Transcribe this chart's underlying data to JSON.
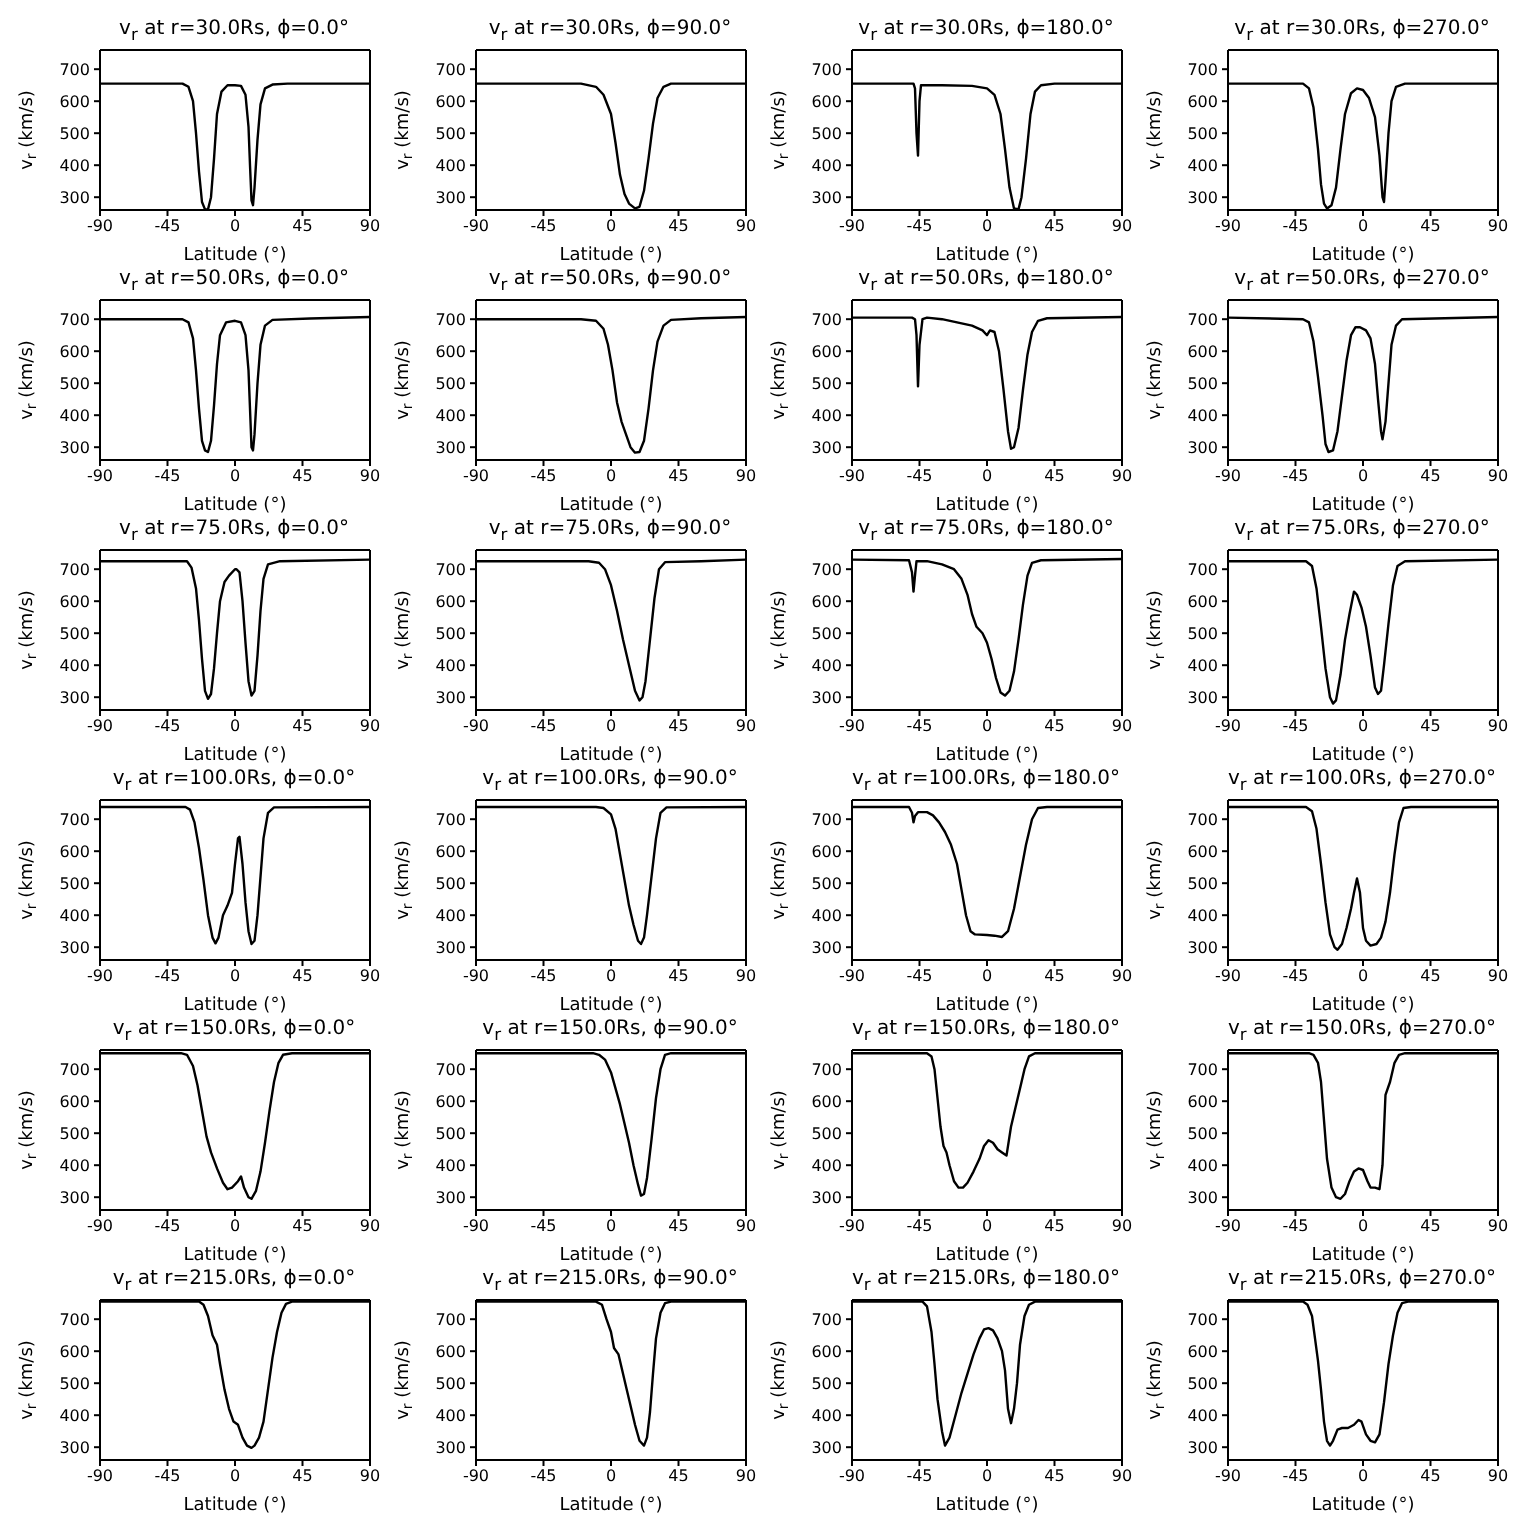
{
  "chart_data": [
    {
      "type": "line",
      "title": "v$_{r}$ at r=30.0Rs, ϕ=0.0°",
      "xlabel": "Latitude (°)",
      "ylabel": "v$_{r}$ (km/s)",
      "color": "#000000",
      "xlim": [
        -90,
        90
      ],
      "xticks": [
        -90,
        -45,
        0,
        45,
        90
      ],
      "ylim": [
        260,
        760
      ],
      "yticks": [
        300,
        400,
        500,
        600,
        700
      ],
      "x": [
        -90,
        -35,
        -31,
        -28,
        -26,
        -24,
        -22,
        -20,
        -18,
        -16,
        -14,
        -12,
        -9,
        -5,
        0,
        4,
        7,
        9,
        10,
        11,
        12,
        13,
        15,
        17,
        20,
        25,
        35,
        90
      ],
      "values": [
        655,
        655,
        645,
        600,
        500,
        380,
        285,
        262,
        262,
        300,
        420,
        560,
        630,
        650,
        650,
        648,
        620,
        520,
        400,
        290,
        275,
        330,
        480,
        590,
        640,
        652,
        655,
        655
      ]
    },
    {
      "type": "line",
      "title": "v$_{r}$ at r=30.0Rs, ϕ=90.0°",
      "xlabel": "Latitude (°)",
      "ylabel": "v$_{r}$ (km/s)",
      "color": "#000000",
      "xlim": [
        -90,
        90
      ],
      "xticks": [
        -90,
        -45,
        0,
        45,
        90
      ],
      "ylim": [
        260,
        760
      ],
      "yticks": [
        300,
        400,
        500,
        600,
        700
      ],
      "x": [
        -90,
        -20,
        -10,
        -5,
        0,
        3,
        6,
        9,
        12,
        16,
        19,
        22,
        25,
        28,
        31,
        35,
        40,
        90
      ],
      "values": [
        655,
        655,
        645,
        620,
        560,
        470,
        370,
        310,
        280,
        265,
        270,
        320,
        420,
        530,
        610,
        645,
        655,
        655
      ]
    },
    {
      "type": "line",
      "title": "v$_{r}$ at r=30.0Rs, ϕ=180.0°",
      "xlabel": "Latitude (°)",
      "ylabel": "v$_{r}$ (km/s)",
      "color": "#000000",
      "xlim": [
        -90,
        90
      ],
      "xticks": [
        -90,
        -45,
        0,
        45,
        90
      ],
      "ylim": [
        260,
        760
      ],
      "yticks": [
        300,
        400,
        500,
        600,
        700
      ],
      "x": [
        -90,
        -49,
        -48,
        -47,
        -46,
        -45,
        -44,
        -30,
        -10,
        0,
        5,
        9,
        12,
        15,
        18,
        21,
        23,
        26,
        29,
        32,
        36,
        45,
        90
      ],
      "values": [
        655,
        655,
        640,
        500,
        430,
        600,
        650,
        650,
        648,
        640,
        620,
        560,
        450,
        330,
        265,
        262,
        300,
        420,
        560,
        630,
        650,
        655,
        655
      ]
    },
    {
      "type": "line",
      "title": "v$_{r}$ at r=30.0Rs, ϕ=270.0°",
      "xlabel": "Latitude (°)",
      "ylabel": "v$_{r}$ (km/s)",
      "color": "#000000",
      "xlim": [
        -90,
        90
      ],
      "xticks": [
        -90,
        -45,
        0,
        45,
        90
      ],
      "ylim": [
        260,
        760
      ],
      "yticks": [
        300,
        400,
        500,
        600,
        700
      ],
      "x": [
        -90,
        -40,
        -36,
        -33,
        -30,
        -28,
        -26,
        -24,
        -21,
        -18,
        -15,
        -12,
        -8,
        -4,
        0,
        4,
        8,
        11,
        13,
        14,
        15,
        17,
        19,
        22,
        28,
        90
      ],
      "values": [
        655,
        655,
        640,
        580,
        450,
        340,
        280,
        265,
        275,
        330,
        450,
        560,
        625,
        640,
        635,
        610,
        550,
        430,
        300,
        285,
        350,
        500,
        600,
        645,
        655,
        655
      ]
    },
    {
      "type": "line",
      "title": "v$_{r}$ at r=50.0Rs, ϕ=0.0°",
      "xlabel": "Latitude (°)",
      "ylabel": "v$_{r}$ (km/s)",
      "color": "#000000",
      "xlim": [
        -90,
        90
      ],
      "xticks": [
        -90,
        -45,
        0,
        45,
        90
      ],
      "ylim": [
        260,
        760
      ],
      "yticks": [
        300,
        400,
        500,
        600,
        700
      ],
      "x": [
        -90,
        -35,
        -31,
        -28,
        -26,
        -24,
        -22,
        -20,
        -18,
        -16,
        -14,
        -12,
        -10,
        -6,
        0,
        4,
        7,
        9,
        10,
        11,
        12,
        13,
        15,
        17,
        20,
        25,
        50,
        90
      ],
      "values": [
        700,
        700,
        690,
        640,
        540,
        420,
        320,
        290,
        285,
        320,
        430,
        560,
        650,
        690,
        695,
        690,
        650,
        540,
        420,
        300,
        290,
        340,
        500,
        620,
        680,
        698,
        702,
        707
      ]
    },
    {
      "type": "line",
      "title": "v$_{r}$ at r=50.0Rs, ϕ=90.0°",
      "xlabel": "Latitude (°)",
      "ylabel": "v$_{r}$ (km/s)",
      "color": "#000000",
      "xlim": [
        -90,
        90
      ],
      "xticks": [
        -90,
        -45,
        0,
        45,
        90
      ],
      "ylim": [
        260,
        760
      ],
      "yticks": [
        300,
        400,
        500,
        600,
        700
      ],
      "x": [
        -90,
        -20,
        -10,
        -5,
        -2,
        1,
        4,
        7,
        10,
        13,
        16,
        19,
        22,
        25,
        28,
        31,
        35,
        40,
        60,
        90
      ],
      "values": [
        700,
        700,
        695,
        670,
        620,
        540,
        440,
        380,
        340,
        300,
        283,
        285,
        320,
        420,
        540,
        630,
        680,
        698,
        703,
        707
      ]
    },
    {
      "type": "line",
      "title": "v$_{r}$ at r=50.0Rs, ϕ=180.0°",
      "xlabel": "Latitude (°)",
      "ylabel": "v$_{r}$ (km/s)",
      "color": "#000000",
      "xlim": [
        -90,
        90
      ],
      "xticks": [
        -90,
        -45,
        0,
        45,
        90
      ],
      "ylim": [
        260,
        760
      ],
      "yticks": [
        300,
        400,
        500,
        600,
        700
      ],
      "x": [
        -90,
        -50,
        -48,
        -47,
        -46,
        -45,
        -43,
        -40,
        -30,
        -20,
        -10,
        -3,
        0,
        2,
        5,
        8,
        11,
        14,
        16,
        18,
        21,
        24,
        27,
        30,
        34,
        40,
        90
      ],
      "values": [
        705,
        705,
        700,
        650,
        490,
        620,
        700,
        705,
        700,
        690,
        680,
        665,
        650,
        665,
        660,
        600,
        480,
        350,
        295,
        300,
        360,
        480,
        590,
        660,
        695,
        703,
        707
      ]
    },
    {
      "type": "line",
      "title": "v$_{r}$ at r=50.0Rs, ϕ=270.0°",
      "xlabel": "Latitude (°)",
      "ylabel": "v$_{r}$ (km/s)",
      "color": "#000000",
      "xlim": [
        -90,
        90
      ],
      "xticks": [
        -90,
        -45,
        0,
        45,
        90
      ],
      "ylim": [
        260,
        760
      ],
      "yticks": [
        300,
        400,
        500,
        600,
        700
      ],
      "x": [
        -90,
        -40,
        -36,
        -33,
        -30,
        -27,
        -25,
        -23,
        -20,
        -17,
        -14,
        -11,
        -8,
        -5,
        -2,
        2,
        5,
        8,
        10,
        12,
        13,
        15,
        17,
        19,
        22,
        26,
        90
      ],
      "values": [
        705,
        700,
        690,
        630,
        520,
        400,
        310,
        285,
        290,
        350,
        460,
        570,
        650,
        675,
        675,
        665,
        640,
        560,
        450,
        350,
        325,
        380,
        500,
        620,
        680,
        700,
        707
      ]
    },
    {
      "type": "line",
      "title": "v$_{r}$ at r=75.0Rs, ϕ=0.0°",
      "xlabel": "Latitude (°)",
      "ylabel": "v$_{r}$ (km/s)",
      "color": "#000000",
      "xlim": [
        -90,
        90
      ],
      "xticks": [
        -90,
        -45,
        0,
        45,
        90
      ],
      "ylim": [
        260,
        760
      ],
      "yticks": [
        300,
        400,
        500,
        600,
        700
      ],
      "x": [
        -90,
        -32,
        -29,
        -26,
        -24,
        -22,
        -20,
        -18,
        -16,
        -14,
        -12,
        -10,
        -7,
        -4,
        0,
        1,
        3,
        5,
        7,
        9,
        11,
        13,
        15,
        17,
        19,
        22,
        30,
        90
      ],
      "values": [
        725,
        725,
        705,
        640,
        540,
        420,
        320,
        295,
        310,
        390,
        500,
        600,
        660,
        680,
        700,
        700,
        690,
        600,
        470,
        350,
        305,
        320,
        430,
        570,
        670,
        715,
        725,
        730
      ]
    },
    {
      "type": "line",
      "title": "v$_{r}$ at r=75.0Rs, ϕ=90.0°",
      "xlabel": "Latitude (°)",
      "ylabel": "v$_{r}$ (km/s)",
      "color": "#000000",
      "xlim": [
        -90,
        90
      ],
      "xticks": [
        -90,
        -45,
        0,
        45,
        90
      ],
      "ylim": [
        260,
        760
      ],
      "yticks": [
        300,
        400,
        500,
        600,
        700
      ],
      "x": [
        -90,
        -15,
        -8,
        -4,
        0,
        4,
        8,
        12,
        16,
        19,
        21,
        23,
        26,
        29,
        32,
        36,
        60,
        90
      ],
      "values": [
        725,
        725,
        720,
        700,
        650,
        570,
        480,
        400,
        320,
        290,
        300,
        350,
        480,
        610,
        700,
        722,
        725,
        730
      ]
    },
    {
      "type": "line",
      "title": "v$_{r}$ at r=75.0Rs, ϕ=180.0°",
      "xlabel": "Latitude (°)",
      "ylabel": "v$_{r}$ (km/s)",
      "color": "#000000",
      "xlim": [
        -90,
        90
      ],
      "xticks": [
        -90,
        -45,
        0,
        45,
        90
      ],
      "ylim": [
        260,
        760
      ],
      "yticks": [
        300,
        400,
        500,
        600,
        700
      ],
      "x": [
        -90,
        -52,
        -50,
        -49,
        -48,
        -47,
        -40,
        -30,
        -22,
        -17,
        -13,
        -10,
        -7,
        -3,
        0,
        3,
        6,
        9,
        12,
        15,
        18,
        21,
        24,
        27,
        30,
        36,
        90
      ],
      "values": [
        730,
        728,
        690,
        630,
        680,
        725,
        725,
        715,
        700,
        670,
        620,
        560,
        520,
        500,
        470,
        420,
        360,
        315,
        305,
        320,
        380,
        480,
        590,
        680,
        720,
        728,
        732
      ]
    },
    {
      "type": "line",
      "title": "v$_{r}$ at r=75.0Rs, ϕ=270.0°",
      "xlabel": "Latitude (°)",
      "ylabel": "v$_{r}$ (km/s)",
      "color": "#000000",
      "xlim": [
        -90,
        90
      ],
      "xticks": [
        -90,
        -45,
        0,
        45,
        90
      ],
      "ylim": [
        260,
        760
      ],
      "yticks": [
        300,
        400,
        500,
        600,
        700
      ],
      "x": [
        -90,
        -38,
        -34,
        -31,
        -28,
        -25,
        -22,
        -20,
        -18,
        -15,
        -12,
        -9,
        -6,
        -4,
        -1,
        2,
        5,
        8,
        10,
        12,
        14,
        17,
        20,
        23,
        28,
        90
      ],
      "values": [
        725,
        725,
        710,
        640,
        520,
        390,
        300,
        280,
        290,
        370,
        480,
        560,
        630,
        620,
        580,
        520,
        430,
        330,
        310,
        320,
        400,
        530,
        650,
        710,
        725,
        730
      ]
    },
    {
      "type": "line",
      "title": "v$_{r}$ at r=100.0Rs, ϕ=0.0°",
      "xlabel": "Latitude (°)",
      "ylabel": "v$_{r}$ (km/s)",
      "color": "#000000",
      "xlim": [
        -90,
        90
      ],
      "xticks": [
        -90,
        -45,
        0,
        45,
        90
      ],
      "ylim": [
        260,
        760
      ],
      "yticks": [
        300,
        400,
        500,
        600,
        700
      ],
      "x": [
        -90,
        -33,
        -30,
        -27,
        -24,
        -21,
        -18,
        -15,
        -13,
        -11,
        -8,
        -5,
        -2,
        0,
        2,
        3,
        5,
        7,
        9,
        11,
        13,
        15,
        17,
        19,
        22,
        26,
        90
      ],
      "values": [
        738,
        738,
        730,
        690,
        610,
        510,
        400,
        330,
        312,
        330,
        400,
        430,
        470,
        560,
        640,
        645,
        560,
        440,
        350,
        310,
        320,
        400,
        520,
        640,
        720,
        737,
        738
      ]
    },
    {
      "type": "line",
      "title": "v$_{r}$ at r=100.0Rs, ϕ=90.0°",
      "xlabel": "Latitude (°)",
      "ylabel": "v$_{r}$ (km/s)",
      "color": "#000000",
      "xlim": [
        -90,
        90
      ],
      "xticks": [
        -90,
        -45,
        0,
        45,
        90
      ],
      "ylim": [
        260,
        760
      ],
      "yticks": [
        300,
        400,
        500,
        600,
        700
      ],
      "x": [
        -90,
        -10,
        -5,
        0,
        3,
        6,
        9,
        12,
        15,
        18,
        20,
        22,
        24,
        27,
        30,
        33,
        37,
        90
      ],
      "values": [
        738,
        738,
        735,
        715,
        670,
        590,
        510,
        430,
        370,
        320,
        310,
        330,
        400,
        520,
        640,
        720,
        737,
        738
      ]
    },
    {
      "type": "line",
      "title": "v$_{r}$ at r=100.0Rs, ϕ=180.0°",
      "xlabel": "Latitude (°)",
      "ylabel": "v$_{r}$ (km/s)",
      "color": "#000000",
      "xlim": [
        -90,
        90
      ],
      "xticks": [
        -90,
        -45,
        0,
        45,
        90
      ],
      "ylim": [
        260,
        760
      ],
      "yticks": [
        300,
        400,
        500,
        600,
        700
      ],
      "x": [
        -90,
        -52,
        -50,
        -49,
        -48,
        -46,
        -40,
        -36,
        -32,
        -28,
        -24,
        -20,
        -17,
        -14,
        -11,
        -8,
        0,
        5,
        10,
        14,
        18,
        22,
        26,
        30,
        34,
        40,
        90
      ],
      "values": [
        738,
        738,
        720,
        690,
        710,
        722,
        722,
        712,
        690,
        660,
        620,
        560,
        480,
        400,
        350,
        340,
        338,
        336,
        332,
        350,
        420,
        520,
        620,
        700,
        735,
        738,
        738
      ]
    },
    {
      "type": "line",
      "title": "v$_{r}$ at r=100.0Rs, ϕ=270.0°",
      "xlabel": "Latitude (°)",
      "ylabel": "v$_{r}$ (km/s)",
      "color": "#000000",
      "xlim": [
        -90,
        90
      ],
      "xticks": [
        -90,
        -45,
        0,
        45,
        90
      ],
      "ylim": [
        260,
        760
      ],
      "yticks": [
        300,
        400,
        500,
        600,
        700
      ],
      "x": [
        -90,
        -38,
        -34,
        -31,
        -28,
        -25,
        -22,
        -19,
        -17,
        -14,
        -11,
        -8,
        -6,
        -4,
        -2,
        0,
        2,
        5,
        9,
        12,
        15,
        18,
        21,
        24,
        27,
        32,
        90
      ],
      "values": [
        738,
        738,
        725,
        670,
        560,
        440,
        340,
        300,
        292,
        310,
        360,
        420,
        470,
        515,
        470,
        360,
        320,
        305,
        310,
        330,
        380,
        470,
        590,
        690,
        735,
        738,
        738
      ]
    },
    {
      "type": "line",
      "title": "v$_{r}$ at r=150.0Rs, ϕ=0.0°",
      "xlabel": "Latitude (°)",
      "ylabel": "v$_{r}$ (km/s)",
      "color": "#000000",
      "xlim": [
        -90,
        90
      ],
      "xticks": [
        -90,
        -45,
        0,
        45,
        90
      ],
      "ylim": [
        260,
        760
      ],
      "yticks": [
        300,
        400,
        500,
        600,
        700
      ],
      "x": [
        -90,
        -36,
        -32,
        -28,
        -25,
        -22,
        -19,
        -16,
        -12,
        -8,
        -5,
        -2,
        2,
        4,
        6,
        9,
        11,
        14,
        17,
        20,
        23,
        26,
        29,
        32,
        38,
        90
      ],
      "values": [
        750,
        750,
        745,
        710,
        650,
        570,
        490,
        440,
        390,
        345,
        325,
        330,
        350,
        365,
        330,
        300,
        295,
        320,
        380,
        470,
        570,
        660,
        720,
        745,
        750,
        750
      ]
    },
    {
      "type": "line",
      "title": "v$_{r}$ at r=150.0Rs, ϕ=90.0°",
      "xlabel": "Latitude (°)",
      "ylabel": "v$_{r}$ (km/s)",
      "color": "#000000",
      "xlim": [
        -90,
        90
      ],
      "xticks": [
        -90,
        -45,
        0,
        45,
        90
      ],
      "ylim": [
        260,
        760
      ],
      "yticks": [
        300,
        400,
        500,
        600,
        700
      ],
      "x": [
        -90,
        -12,
        -8,
        -4,
        0,
        3,
        6,
        9,
        12,
        15,
        18,
        20,
        22,
        24,
        27,
        30,
        33,
        36,
        40,
        90
      ],
      "values": [
        750,
        750,
        745,
        730,
        690,
        640,
        590,
        530,
        470,
        400,
        340,
        305,
        310,
        360,
        480,
        610,
        700,
        745,
        750,
        750
      ]
    },
    {
      "type": "line",
      "title": "v$_{r}$ at r=150.0Rs, ϕ=180.0°",
      "xlabel": "Latitude (°)",
      "ylabel": "v$_{r}$ (km/s)",
      "color": "#000000",
      "xlim": [
        -90,
        90
      ],
      "xticks": [
        -90,
        -45,
        0,
        45,
        90
      ],
      "ylim": [
        260,
        760
      ],
      "yticks": [
        300,
        400,
        500,
        600,
        700
      ],
      "x": [
        -90,
        -40,
        -37,
        -35,
        -33,
        -31,
        -29,
        -27,
        -25,
        -22,
        -19,
        -16,
        -13,
        -9,
        -5,
        -2,
        1,
        4,
        7,
        10,
        13,
        16,
        19,
        22,
        25,
        28,
        32,
        90
      ],
      "values": [
        750,
        750,
        740,
        700,
        610,
        520,
        460,
        440,
        400,
        350,
        330,
        330,
        345,
        380,
        420,
        460,
        478,
        470,
        450,
        440,
        430,
        520,
        580,
        640,
        700,
        740,
        750,
        750
      ]
    },
    {
      "type": "line",
      "title": "v$_{r}$ at r=150.0Rs, ϕ=270.0°",
      "xlabel": "Latitude (°)",
      "ylabel": "v$_{r}$ (km/s)",
      "color": "#000000",
      "xlim": [
        -90,
        90
      ],
      "xticks": [
        -90,
        -45,
        0,
        45,
        90
      ],
      "ylim": [
        260,
        760
      ],
      "yticks": [
        300,
        400,
        500,
        600,
        700
      ],
      "x": [
        -90,
        -36,
        -33,
        -30,
        -28,
        -26,
        -24,
        -21,
        -18,
        -15,
        -12,
        -9,
        -6,
        -3,
        0,
        3,
        5,
        8,
        11,
        13,
        15,
        18,
        21,
        24,
        28,
        90
      ],
      "values": [
        750,
        750,
        745,
        720,
        660,
        540,
        420,
        330,
        300,
        295,
        310,
        350,
        380,
        390,
        385,
        350,
        330,
        330,
        325,
        400,
        620,
        660,
        720,
        745,
        750,
        750
      ]
    },
    {
      "type": "line",
      "title": "v$_{r}$ at r=215.0Rs, ϕ=0.0°",
      "xlabel": "Latitude (°)",
      "ylabel": "v$_{r}$ (km/s)",
      "color": "#000000",
      "xlim": [
        -90,
        90
      ],
      "xticks": [
        -90,
        -45,
        0,
        45,
        90
      ],
      "ylim": [
        260,
        760
      ],
      "yticks": [
        300,
        400,
        500,
        600,
        700
      ],
      "x": [
        -90,
        -24,
        -21,
        -18,
        -15,
        -12,
        -10,
        -7,
        -4,
        -1,
        2,
        5,
        8,
        11,
        13,
        16,
        19,
        22,
        25,
        28,
        31,
        34,
        38,
        90
      ],
      "values": [
        755,
        755,
        745,
        710,
        650,
        620,
        560,
        480,
        420,
        380,
        370,
        330,
        305,
        298,
        305,
        330,
        380,
        480,
        580,
        660,
        720,
        748,
        755,
        755
      ]
    },
    {
      "type": "line",
      "title": "v$_{r}$ at r=215.0Rs, ϕ=90.0°",
      "xlabel": "Latitude (°)",
      "ylabel": "v$_{r}$ (km/s)",
      "color": "#000000",
      "xlim": [
        -90,
        90
      ],
      "xticks": [
        -90,
        -45,
        0,
        45,
        90
      ],
      "ylim": [
        260,
        760
      ],
      "yticks": [
        300,
        400,
        500,
        600,
        700
      ],
      "x": [
        -90,
        -10,
        -6,
        -3,
        0,
        2,
        5,
        7,
        10,
        13,
        16,
        19,
        22,
        24,
        26,
        28,
        30,
        33,
        36,
        40,
        90
      ],
      "values": [
        755,
        755,
        745,
        700,
        660,
        610,
        590,
        550,
        490,
        430,
        370,
        320,
        305,
        330,
        410,
        530,
        640,
        720,
        750,
        755,
        755
      ]
    },
    {
      "type": "line",
      "title": "v$_{r}$ at r=215.0Rs, ϕ=180.0°",
      "xlabel": "Latitude (°)",
      "ylabel": "v$_{r}$ (km/s)",
      "color": "#000000",
      "xlim": [
        -90,
        90
      ],
      "xticks": [
        -90,
        -45,
        0,
        45,
        90
      ],
      "ylim": [
        260,
        760
      ],
      "yticks": [
        300,
        400,
        500,
        600,
        700
      ],
      "x": [
        -90,
        -43,
        -40,
        -37,
        -35,
        -33,
        -30,
        -28,
        -25,
        -21,
        -17,
        -13,
        -9,
        -5,
        -2,
        1,
        4,
        7,
        10,
        12,
        14,
        16,
        18,
        20,
        22,
        25,
        28,
        32,
        90
      ],
      "values": [
        755,
        755,
        740,
        660,
        560,
        450,
        350,
        305,
        330,
        400,
        470,
        530,
        590,
        640,
        668,
        672,
        665,
        640,
        600,
        540,
        420,
        375,
        420,
        500,
        620,
        710,
        745,
        755,
        755
      ]
    },
    {
      "type": "line",
      "title": "v$_{r}$ at r=215.0Rs, ϕ=270.0°",
      "xlabel": "Latitude (°)",
      "ylabel": "v$_{r}$ (km/s)",
      "color": "#000000",
      "xlim": [
        -90,
        90
      ],
      "xticks": [
        -90,
        -45,
        0,
        45,
        90
      ],
      "ylim": [
        260,
        760
      ],
      "yticks": [
        300,
        400,
        500,
        600,
        700
      ],
      "x": [
        -90,
        -40,
        -37,
        -34,
        -32,
        -30,
        -28,
        -26,
        -24,
        -22,
        -20,
        -17,
        -14,
        -10,
        -6,
        -3,
        -1,
        2,
        5,
        8,
        11,
        14,
        17,
        20,
        23,
        26,
        30,
        90
      ],
      "values": [
        755,
        755,
        745,
        710,
        640,
        570,
        480,
        380,
        320,
        305,
        320,
        355,
        360,
        360,
        370,
        385,
        380,
        340,
        320,
        315,
        340,
        440,
        560,
        650,
        720,
        750,
        755,
        755
      ]
    }
  ]
}
